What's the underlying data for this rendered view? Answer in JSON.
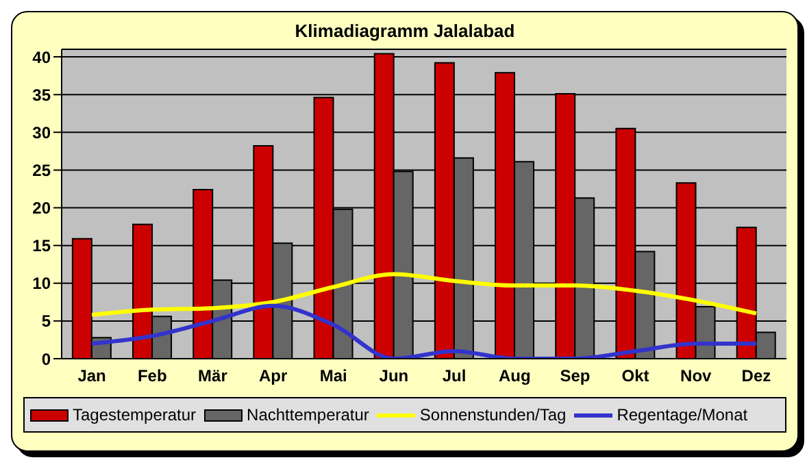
{
  "chart_data": {
    "type": "bar",
    "title": "Klimadiagramm Jalalabad",
    "categories": [
      "Jan",
      "Feb",
      "Mär",
      "Apr",
      "Mai",
      "Jun",
      "Jul",
      "Aug",
      "Sep",
      "Okt",
      "Nov",
      "Dez"
    ],
    "series": [
      {
        "name": "Tagestemperatur",
        "color": "#cc0000",
        "values": [
          15.9,
          17.8,
          22.4,
          28.2,
          34.6,
          40.4,
          39.2,
          37.9,
          35.1,
          30.5,
          23.3,
          17.4
        ]
      },
      {
        "name": "Nachttemperatur",
        "color": "#666666",
        "values": [
          2.8,
          5.6,
          10.4,
          15.3,
          19.8,
          24.8,
          26.6,
          26.1,
          21.3,
          14.2,
          6.9,
          3.5
        ]
      },
      {
        "name": "Sonnenstunden/Tag",
        "type": "line",
        "color": "#ffff00",
        "values": [
          5.8,
          6.5,
          6.7,
          7.5,
          9.5,
          11.2,
          10.3,
          9.7,
          9.7,
          9.0,
          7.7,
          6.0
        ]
      },
      {
        "name": "Regentage/Monat",
        "type": "line",
        "color": "#3333cc",
        "values": [
          2,
          3,
          5,
          7,
          4.5,
          0,
          1,
          0,
          0,
          1,
          2,
          2
        ]
      }
    ],
    "ylim": [
      0,
      41
    ],
    "yticks": [
      0,
      5,
      10,
      15,
      20,
      25,
      30,
      35,
      40
    ],
    "grid": "y",
    "legend": "bottom",
    "marker": "none"
  }
}
